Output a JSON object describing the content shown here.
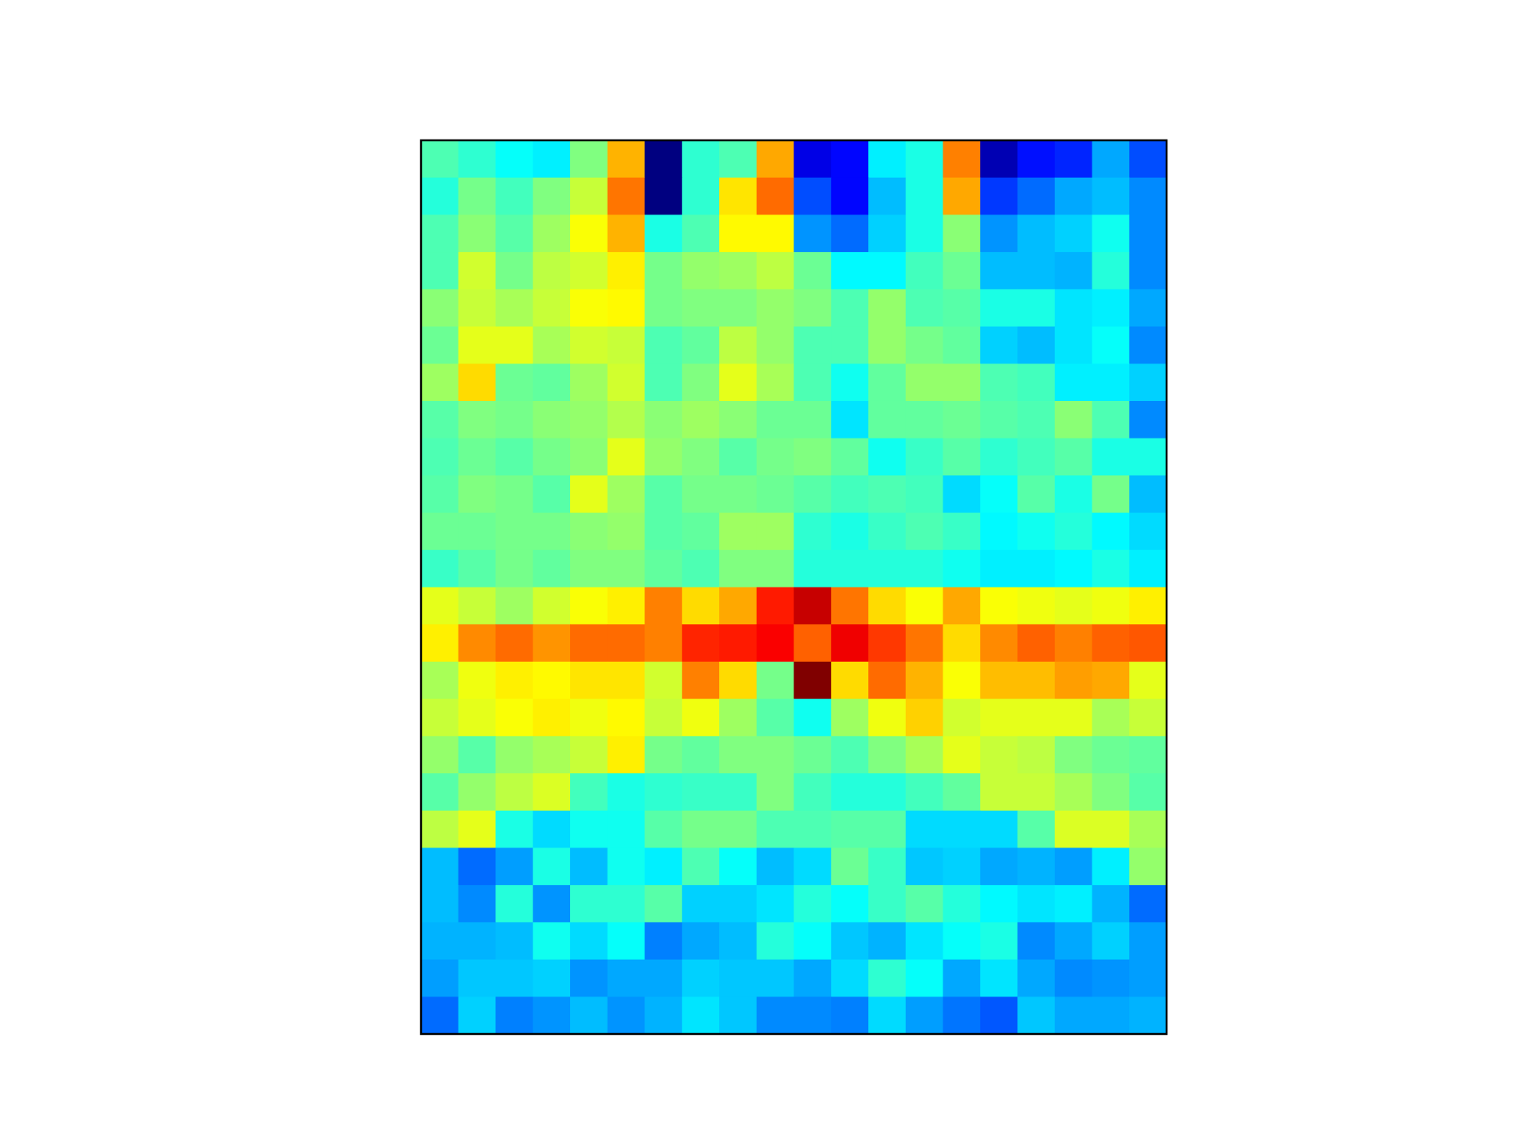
{
  "chart_data": {
    "type": "heatmap",
    "title": "",
    "xlabel": "",
    "ylabel": "",
    "colormap": "jet",
    "value_range": [
      0,
      1
    ],
    "n_rows": 24,
    "n_cols": 20,
    "axes_visible": false,
    "values": [
      [
        0.45,
        0.42,
        0.38,
        0.36,
        0.5,
        0.7,
        0.0,
        0.42,
        0.45,
        0.71,
        0.1,
        0.13,
        0.36,
        0.4,
        0.75,
        0.05,
        0.14,
        0.16,
        0.29,
        0.2
      ],
      [
        0.41,
        0.49,
        0.44,
        0.5,
        0.57,
        0.76,
        0.0,
        0.42,
        0.65,
        0.77,
        0.2,
        0.13,
        0.31,
        0.4,
        0.71,
        0.18,
        0.23,
        0.29,
        0.31,
        0.26
      ],
      [
        0.45,
        0.51,
        0.46,
        0.53,
        0.62,
        0.7,
        0.4,
        0.45,
        0.63,
        0.63,
        0.27,
        0.23,
        0.33,
        0.4,
        0.51,
        0.27,
        0.31,
        0.33,
        0.39,
        0.26
      ],
      [
        0.45,
        0.58,
        0.49,
        0.56,
        0.58,
        0.64,
        0.49,
        0.52,
        0.53,
        0.56,
        0.48,
        0.37,
        0.37,
        0.44,
        0.48,
        0.31,
        0.31,
        0.3,
        0.41,
        0.26
      ],
      [
        0.51,
        0.57,
        0.54,
        0.57,
        0.62,
        0.63,
        0.49,
        0.5,
        0.5,
        0.52,
        0.5,
        0.45,
        0.52,
        0.45,
        0.46,
        0.4,
        0.4,
        0.35,
        0.36,
        0.29
      ],
      [
        0.48,
        0.6,
        0.6,
        0.54,
        0.58,
        0.57,
        0.45,
        0.47,
        0.56,
        0.52,
        0.45,
        0.45,
        0.52,
        0.49,
        0.47,
        0.33,
        0.31,
        0.35,
        0.38,
        0.26
      ],
      [
        0.53,
        0.66,
        0.48,
        0.47,
        0.53,
        0.58,
        0.45,
        0.5,
        0.6,
        0.54,
        0.45,
        0.39,
        0.47,
        0.52,
        0.52,
        0.45,
        0.44,
        0.36,
        0.36,
        0.33
      ],
      [
        0.46,
        0.5,
        0.49,
        0.51,
        0.52,
        0.55,
        0.51,
        0.53,
        0.51,
        0.48,
        0.48,
        0.35,
        0.47,
        0.47,
        0.48,
        0.46,
        0.45,
        0.51,
        0.45,
        0.26
      ],
      [
        0.45,
        0.48,
        0.46,
        0.49,
        0.51,
        0.6,
        0.52,
        0.5,
        0.46,
        0.49,
        0.5,
        0.47,
        0.39,
        0.43,
        0.46,
        0.42,
        0.44,
        0.46,
        0.4,
        0.4
      ],
      [
        0.46,
        0.5,
        0.49,
        0.46,
        0.6,
        0.53,
        0.46,
        0.49,
        0.49,
        0.48,
        0.46,
        0.44,
        0.45,
        0.44,
        0.34,
        0.38,
        0.46,
        0.4,
        0.49,
        0.31
      ],
      [
        0.48,
        0.48,
        0.49,
        0.49,
        0.51,
        0.52,
        0.46,
        0.47,
        0.53,
        0.53,
        0.42,
        0.4,
        0.43,
        0.45,
        0.43,
        0.37,
        0.39,
        0.41,
        0.37,
        0.34
      ],
      [
        0.43,
        0.46,
        0.49,
        0.47,
        0.5,
        0.5,
        0.47,
        0.45,
        0.5,
        0.5,
        0.41,
        0.41,
        0.41,
        0.41,
        0.39,
        0.36,
        0.36,
        0.37,
        0.4,
        0.36
      ],
      [
        0.6,
        0.57,
        0.53,
        0.58,
        0.62,
        0.64,
        0.75,
        0.66,
        0.71,
        0.85,
        0.93,
        0.76,
        0.66,
        0.62,
        0.71,
        0.62,
        0.61,
        0.6,
        0.61,
        0.64
      ],
      [
        0.64,
        0.74,
        0.77,
        0.73,
        0.77,
        0.77,
        0.75,
        0.84,
        0.85,
        0.88,
        0.78,
        0.89,
        0.82,
        0.76,
        0.66,
        0.74,
        0.78,
        0.75,
        0.78,
        0.79
      ],
      [
        0.54,
        0.61,
        0.64,
        0.63,
        0.65,
        0.65,
        0.58,
        0.75,
        0.66,
        0.49,
        1.0,
        0.66,
        0.77,
        0.7,
        0.62,
        0.69,
        0.69,
        0.72,
        0.71,
        0.6
      ],
      [
        0.57,
        0.6,
        0.62,
        0.64,
        0.61,
        0.63,
        0.57,
        0.61,
        0.53,
        0.46,
        0.39,
        0.53,
        0.61,
        0.67,
        0.58,
        0.6,
        0.6,
        0.6,
        0.54,
        0.57
      ],
      [
        0.52,
        0.46,
        0.52,
        0.54,
        0.57,
        0.64,
        0.49,
        0.47,
        0.5,
        0.5,
        0.48,
        0.45,
        0.5,
        0.54,
        0.6,
        0.57,
        0.56,
        0.5,
        0.48,
        0.47
      ],
      [
        0.46,
        0.52,
        0.56,
        0.59,
        0.44,
        0.4,
        0.42,
        0.43,
        0.43,
        0.5,
        0.44,
        0.41,
        0.41,
        0.44,
        0.47,
        0.57,
        0.57,
        0.54,
        0.5,
        0.46
      ],
      [
        0.56,
        0.6,
        0.4,
        0.34,
        0.39,
        0.39,
        0.46,
        0.49,
        0.49,
        0.45,
        0.45,
        0.46,
        0.46,
        0.34,
        0.34,
        0.34,
        0.46,
        0.59,
        0.59,
        0.54
      ],
      [
        0.31,
        0.23,
        0.28,
        0.4,
        0.31,
        0.39,
        0.36,
        0.45,
        0.38,
        0.31,
        0.34,
        0.48,
        0.43,
        0.32,
        0.33,
        0.29,
        0.3,
        0.28,
        0.36,
        0.52
      ],
      [
        0.31,
        0.26,
        0.41,
        0.27,
        0.42,
        0.42,
        0.46,
        0.33,
        0.33,
        0.35,
        0.41,
        0.38,
        0.43,
        0.46,
        0.41,
        0.37,
        0.35,
        0.36,
        0.3,
        0.23
      ],
      [
        0.3,
        0.3,
        0.31,
        0.39,
        0.34,
        0.38,
        0.25,
        0.29,
        0.31,
        0.41,
        0.38,
        0.32,
        0.3,
        0.35,
        0.38,
        0.4,
        0.26,
        0.29,
        0.33,
        0.28
      ],
      [
        0.28,
        0.32,
        0.32,
        0.33,
        0.27,
        0.29,
        0.29,
        0.33,
        0.32,
        0.32,
        0.29,
        0.34,
        0.42,
        0.38,
        0.29,
        0.35,
        0.29,
        0.26,
        0.27,
        0.28
      ],
      [
        0.23,
        0.33,
        0.25,
        0.27,
        0.31,
        0.27,
        0.3,
        0.35,
        0.32,
        0.26,
        0.26,
        0.25,
        0.34,
        0.28,
        0.24,
        0.21,
        0.32,
        0.29,
        0.29,
        0.3
      ]
    ]
  }
}
